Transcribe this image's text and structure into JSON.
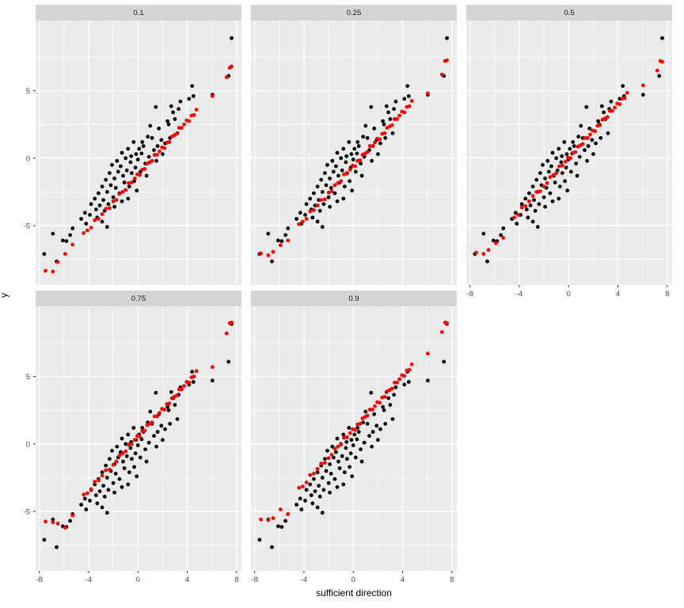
{
  "chart_data": {
    "type": "scatter",
    "title": "",
    "xlabel": "sufficient direction",
    "ylabel": "y",
    "xlim": [
      -8.3,
      8.4
    ],
    "ylim": [
      -9.4,
      10.2
    ],
    "x_ticks": [
      -8,
      -4,
      0,
      4,
      8
    ],
    "y_ticks": [
      5,
      0,
      -5
    ],
    "x_minor": [
      -6,
      -2,
      2,
      6
    ],
    "y_minor": [
      7.5,
      2.5,
      -2.5,
      -7.5
    ],
    "grid": "on",
    "legend": "none",
    "panel_bg": "#ebebeb",
    "strip_bg": "#d5d5d5",
    "grid_color": "#ffffff",
    "tick_label_color": "#4d4d4d",
    "point_colors": {
      "observed": "#000000",
      "fitted": "#ff0000"
    },
    "black_points_shared_across_facets": [
      [
        7.6,
        8.9
      ],
      [
        7.35,
        6.1
      ],
      [
        6.05,
        4.7
      ],
      [
        4.4,
        5.35
      ],
      [
        4.5,
        4.6
      ],
      [
        4.15,
        4.4
      ],
      [
        3.45,
        4.2
      ],
      [
        3.3,
        3.65
      ],
      [
        2.7,
        3.85
      ],
      [
        2.85,
        3.4
      ],
      [
        3.0,
        2.9
      ],
      [
        2.5,
        2.5
      ],
      [
        2.4,
        2.75
      ],
      [
        3.2,
        1.85
      ],
      [
        1.45,
        3.8
      ],
      [
        1.0,
        2.4
      ],
      [
        1.15,
        1.5
      ],
      [
        0.35,
        1.2
      ],
      [
        -0.35,
        1.2
      ],
      [
        0.45,
        0.9
      ],
      [
        0.3,
        0.35
      ],
      [
        -0.55,
        0.15
      ],
      [
        1.9,
        1.35
      ],
      [
        2.2,
        1.1
      ],
      [
        1.6,
        0.9
      ],
      [
        1.3,
        0.6
      ],
      [
        0.9,
        0.1
      ],
      [
        0.6,
        -0.4
      ],
      [
        1.5,
        -0.2
      ],
      [
        2.0,
        0.3
      ],
      [
        0.1,
        0.7
      ],
      [
        -0.15,
        0.3
      ],
      [
        -0.8,
        0.7
      ],
      [
        -1.3,
        0.4
      ],
      [
        -1.0,
        0.0
      ],
      [
        -1.7,
        -0.2
      ],
      [
        -2.1,
        -0.5
      ],
      [
        -1.4,
        -0.6
      ],
      [
        -0.6,
        -0.3
      ],
      [
        -0.2,
        -0.7
      ],
      [
        0.2,
        -1.0
      ],
      [
        0.7,
        -1.3
      ],
      [
        -0.5,
        -1.1
      ],
      [
        -0.9,
        -0.9
      ],
      [
        -1.2,
        -1.3
      ],
      [
        -1.6,
        -1.0
      ],
      [
        -1.9,
        -1.5
      ],
      [
        -2.3,
        -1.1
      ],
      [
        -2.6,
        -1.6
      ],
      [
        -2.2,
        -2.0
      ],
      [
        -1.8,
        -2.2
      ],
      [
        -1.1,
        -1.8
      ],
      [
        -0.7,
        -2.1
      ],
      [
        -0.3,
        -1.7
      ],
      [
        -0.1,
        -2.4
      ],
      [
        -1.5,
        -2.6
      ],
      [
        -2.0,
        -2.9
      ],
      [
        -2.5,
        -2.5
      ],
      [
        -2.9,
        -2.1
      ],
      [
        -3.2,
        -2.6
      ],
      [
        -2.8,
        -3.1
      ],
      [
        -3.5,
        -3.0
      ],
      [
        -3.1,
        -3.5
      ],
      [
        -2.4,
        -3.4
      ],
      [
        -1.9,
        -3.6
      ],
      [
        -1.3,
        -3.2
      ],
      [
        -0.8,
        -3.0
      ],
      [
        -2.7,
        -3.9
      ],
      [
        -3.4,
        -3.8
      ],
      [
        -3.8,
        -3.4
      ],
      [
        -3.9,
        -4.2
      ],
      [
        -3.3,
        -4.4
      ],
      [
        -2.9,
        -4.7
      ],
      [
        -4.3,
        -4.05
      ],
      [
        -4.6,
        -4.5
      ],
      [
        -4.2,
        -4.85
      ],
      [
        -2.5,
        -5.1
      ],
      [
        -5.3,
        -5.2
      ],
      [
        -6.9,
        -5.6
      ],
      [
        -6.1,
        -6.1
      ],
      [
        -5.8,
        -6.15
      ],
      [
        -5.5,
        -5.7
      ],
      [
        -7.6,
        -7.1
      ],
      [
        -6.6,
        -7.65
      ],
      [
        0.0,
        -0.1
      ],
      [
        0.8,
        1.6
      ],
      [
        1.7,
        2.2
      ],
      [
        2.6,
        1.5
      ]
    ],
    "facets": [
      {
        "label": "0.1",
        "red": [
          [
            4.75,
            3.6
          ],
          [
            4.55,
            3.2
          ],
          [
            4.35,
            3.15
          ],
          [
            4.15,
            2.75
          ],
          [
            3.95,
            2.8
          ],
          [
            3.75,
            2.5
          ],
          [
            3.55,
            2.25
          ],
          [
            3.35,
            2.25
          ],
          [
            3.15,
            1.8
          ],
          [
            2.95,
            1.7
          ],
          [
            2.75,
            1.6
          ],
          [
            2.55,
            1.2
          ],
          [
            2.35,
            1.15
          ],
          [
            2.15,
            0.75
          ],
          [
            1.95,
            0.8
          ],
          [
            1.75,
            0.5
          ],
          [
            1.55,
            0.25
          ],
          [
            1.35,
            0.25
          ],
          [
            1.15,
            -0.2
          ],
          [
            0.95,
            -0.3
          ],
          [
            0.75,
            -0.4
          ],
          [
            0.55,
            -0.8
          ],
          [
            0.35,
            -0.85
          ],
          [
            0.15,
            -1.25
          ],
          [
            -0.05,
            -1.2
          ],
          [
            -0.25,
            -1.5
          ],
          [
            -0.5,
            -1.8
          ],
          [
            -0.75,
            -1.85
          ],
          [
            -1.0,
            -2.35
          ],
          [
            -1.25,
            -2.5
          ],
          [
            -1.5,
            -2.65
          ],
          [
            -1.75,
            -3.1
          ],
          [
            -2.0,
            -3.2
          ],
          [
            -2.3,
            -3.7
          ],
          [
            -2.6,
            -3.75
          ],
          [
            -2.9,
            -4.15
          ],
          [
            -3.2,
            -4.5
          ],
          [
            -3.5,
            -4.6
          ],
          [
            -3.8,
            -5.15
          ],
          [
            -4.1,
            -5.35
          ],
          [
            -4.4,
            -5.55
          ],
          [
            6.05,
            4.6
          ],
          [
            7.2,
            6.0
          ],
          [
            7.45,
            6.7
          ],
          [
            7.6,
            6.8
          ],
          [
            -5.3,
            -6.4
          ],
          [
            -5.9,
            -7.1
          ],
          [
            -6.5,
            -7.7
          ],
          [
            -6.9,
            -8.4
          ],
          [
            -7.5,
            -8.35
          ]
        ]
      },
      {
        "label": "0.25",
        "red": [
          [
            4.75,
            4.25
          ],
          [
            4.55,
            3.85
          ],
          [
            4.35,
            3.8
          ],
          [
            4.15,
            3.4
          ],
          [
            3.95,
            3.45
          ],
          [
            3.75,
            3.15
          ],
          [
            3.55,
            2.9
          ],
          [
            3.35,
            2.9
          ],
          [
            3.15,
            2.45
          ],
          [
            2.95,
            2.35
          ],
          [
            2.75,
            2.25
          ],
          [
            2.55,
            1.85
          ],
          [
            2.35,
            1.8
          ],
          [
            2.15,
            1.4
          ],
          [
            1.95,
            1.45
          ],
          [
            1.75,
            1.15
          ],
          [
            1.55,
            0.9
          ],
          [
            1.35,
            0.9
          ],
          [
            1.15,
            0.45
          ],
          [
            0.95,
            0.35
          ],
          [
            0.75,
            0.25
          ],
          [
            0.55,
            -0.15
          ],
          [
            0.35,
            -0.2
          ],
          [
            0.15,
            -0.6
          ],
          [
            -0.05,
            -0.55
          ],
          [
            -0.25,
            -0.85
          ],
          [
            -0.5,
            -1.15
          ],
          [
            -0.75,
            -1.2
          ],
          [
            -1.0,
            -1.7
          ],
          [
            -1.25,
            -1.85
          ],
          [
            -1.5,
            -2.0
          ],
          [
            -1.75,
            -2.45
          ],
          [
            -2.0,
            -2.55
          ],
          [
            -2.3,
            -3.05
          ],
          [
            -2.6,
            -3.1
          ],
          [
            -2.9,
            -3.5
          ],
          [
            -3.2,
            -3.85
          ],
          [
            -3.5,
            -3.95
          ],
          [
            -3.8,
            -4.5
          ],
          [
            -4.1,
            -4.7
          ],
          [
            -4.4,
            -4.9
          ],
          [
            6.05,
            4.8
          ],
          [
            7.2,
            6.2
          ],
          [
            7.45,
            7.2
          ],
          [
            7.6,
            7.25
          ],
          [
            -5.3,
            -6.1
          ],
          [
            -5.9,
            -6.45
          ],
          [
            -6.5,
            -6.95
          ],
          [
            -6.9,
            -7.2
          ],
          [
            -7.5,
            -7.05
          ]
        ]
      },
      {
        "label": "0.5",
        "red": [
          [
            4.75,
            4.85
          ],
          [
            4.55,
            4.45
          ],
          [
            4.35,
            4.4
          ],
          [
            4.15,
            4.0
          ],
          [
            3.95,
            4.05
          ],
          [
            3.75,
            3.75
          ],
          [
            3.55,
            3.5
          ],
          [
            3.35,
            3.5
          ],
          [
            3.15,
            3.05
          ],
          [
            2.95,
            2.95
          ],
          [
            2.75,
            2.85
          ],
          [
            2.55,
            2.45
          ],
          [
            2.35,
            2.4
          ],
          [
            2.15,
            2.0
          ],
          [
            1.95,
            2.05
          ],
          [
            1.75,
            1.75
          ],
          [
            1.55,
            1.5
          ],
          [
            1.35,
            1.5
          ],
          [
            1.15,
            1.05
          ],
          [
            0.95,
            0.95
          ],
          [
            0.75,
            0.85
          ],
          [
            0.55,
            0.45
          ],
          [
            0.35,
            0.4
          ],
          [
            0.15,
            0.0
          ],
          [
            -0.05,
            0.05
          ],
          [
            -0.25,
            -0.25
          ],
          [
            -0.5,
            -0.55
          ],
          [
            -0.75,
            -0.6
          ],
          [
            -1.0,
            -1.1
          ],
          [
            -1.25,
            -1.25
          ],
          [
            -1.5,
            -1.4
          ],
          [
            -1.75,
            -1.85
          ],
          [
            -2.0,
            -2.1
          ],
          [
            -2.3,
            -2.45
          ],
          [
            -2.6,
            -2.5
          ],
          [
            -2.9,
            -2.8
          ],
          [
            -3.2,
            -3.2
          ],
          [
            -3.5,
            -3.55
          ],
          [
            -3.8,
            -3.65
          ],
          [
            -4.1,
            -4.2
          ],
          [
            -4.4,
            -4.4
          ],
          [
            6.05,
            5.4
          ],
          [
            7.2,
            6.5
          ],
          [
            7.45,
            7.2
          ],
          [
            7.6,
            7.15
          ],
          [
            -5.3,
            -5.9
          ],
          [
            -5.9,
            -6.3
          ],
          [
            -6.5,
            -6.8
          ],
          [
            -6.9,
            -7.1
          ],
          [
            -7.5,
            -7.0
          ]
        ]
      },
      {
        "label": "0.75",
        "red": [
          [
            4.75,
            5.4
          ],
          [
            4.55,
            5.0
          ],
          [
            4.35,
            4.95
          ],
          [
            4.15,
            4.55
          ],
          [
            3.95,
            4.6
          ],
          [
            3.75,
            4.3
          ],
          [
            3.55,
            4.05
          ],
          [
            3.35,
            4.05
          ],
          [
            3.15,
            3.6
          ],
          [
            2.95,
            3.5
          ],
          [
            2.75,
            3.4
          ],
          [
            2.55,
            3.0
          ],
          [
            2.35,
            2.95
          ],
          [
            2.15,
            2.55
          ],
          [
            1.95,
            2.6
          ],
          [
            1.75,
            2.3
          ],
          [
            1.55,
            2.05
          ],
          [
            1.35,
            2.05
          ],
          [
            1.15,
            1.6
          ],
          [
            0.95,
            1.5
          ],
          [
            0.75,
            1.4
          ],
          [
            0.55,
            1.0
          ],
          [
            0.35,
            0.95
          ],
          [
            0.15,
            0.55
          ],
          [
            -0.05,
            0.6
          ],
          [
            -0.25,
            0.3
          ],
          [
            -0.5,
            0.0
          ],
          [
            -0.75,
            -0.05
          ],
          [
            -1.0,
            -0.55
          ],
          [
            -1.25,
            -0.7
          ],
          [
            -1.5,
            -0.85
          ],
          [
            -1.75,
            -1.3
          ],
          [
            -2.0,
            -1.55
          ],
          [
            -2.3,
            -1.9
          ],
          [
            -2.6,
            -1.95
          ],
          [
            -2.9,
            -2.35
          ],
          [
            -3.2,
            -2.7
          ],
          [
            -3.5,
            -2.8
          ],
          [
            -3.8,
            -3.35
          ],
          [
            -4.1,
            -3.65
          ],
          [
            -4.4,
            -3.75
          ],
          [
            6.05,
            5.7
          ],
          [
            7.2,
            8.2
          ],
          [
            7.45,
            8.95
          ],
          [
            7.6,
            9.0
          ],
          [
            -5.3,
            -5.3
          ],
          [
            -5.9,
            -6.2
          ],
          [
            -6.5,
            -5.9
          ],
          [
            -6.9,
            -5.8
          ],
          [
            -7.5,
            -5.75
          ]
        ]
      },
      {
        "label": "0.9",
        "red": [
          [
            4.75,
            5.9
          ],
          [
            4.55,
            5.5
          ],
          [
            4.35,
            5.45
          ],
          [
            4.15,
            5.05
          ],
          [
            3.95,
            5.1
          ],
          [
            3.75,
            4.8
          ],
          [
            3.55,
            4.55
          ],
          [
            3.35,
            4.55
          ],
          [
            3.15,
            4.1
          ],
          [
            2.95,
            4.0
          ],
          [
            2.75,
            3.9
          ],
          [
            2.55,
            3.5
          ],
          [
            2.35,
            3.45
          ],
          [
            2.15,
            3.05
          ],
          [
            1.95,
            3.1
          ],
          [
            1.75,
            2.8
          ],
          [
            1.55,
            2.55
          ],
          [
            1.35,
            2.55
          ],
          [
            1.15,
            2.1
          ],
          [
            0.95,
            2.0
          ],
          [
            0.75,
            1.9
          ],
          [
            0.55,
            1.5
          ],
          [
            0.35,
            1.45
          ],
          [
            0.15,
            1.05
          ],
          [
            -0.05,
            1.1
          ],
          [
            -0.25,
            0.8
          ],
          [
            -0.5,
            0.5
          ],
          [
            -0.75,
            0.45
          ],
          [
            -1.0,
            -0.05
          ],
          [
            -1.25,
            -0.2
          ],
          [
            -1.5,
            -0.35
          ],
          [
            -1.75,
            -0.8
          ],
          [
            -2.0,
            -1.05
          ],
          [
            -2.3,
            -1.4
          ],
          [
            -2.6,
            -1.45
          ],
          [
            -2.9,
            -1.85
          ],
          [
            -3.2,
            -2.2
          ],
          [
            -3.5,
            -2.3
          ],
          [
            -3.8,
            -2.85
          ],
          [
            -4.1,
            -3.15
          ],
          [
            -4.4,
            -3.25
          ],
          [
            6.05,
            6.7
          ],
          [
            7.2,
            8.3
          ],
          [
            7.45,
            9.0
          ],
          [
            7.6,
            8.95
          ],
          [
            -5.3,
            -5.2
          ],
          [
            -5.9,
            -4.85
          ],
          [
            -6.5,
            -5.5
          ],
          [
            -6.9,
            -5.65
          ],
          [
            -7.5,
            -5.6
          ]
        ]
      }
    ]
  }
}
